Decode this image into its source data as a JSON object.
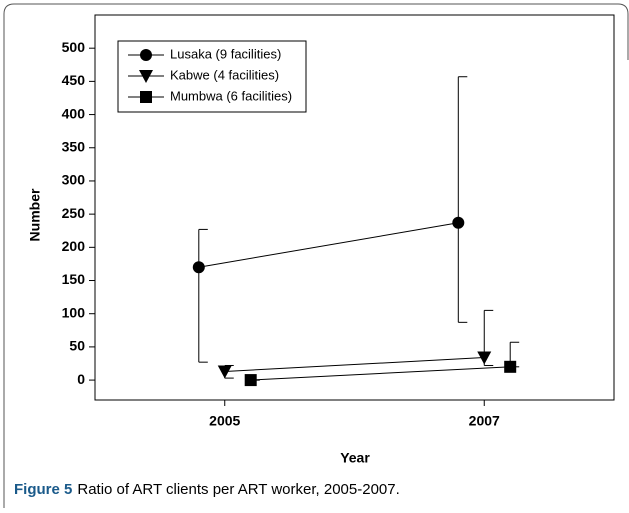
{
  "chart_data": {
    "type": "errorbar",
    "xlabel": "Year",
    "ylabel": "Number",
    "xlim": [
      2004,
      2008
    ],
    "xticks": [
      2005,
      2007
    ],
    "ylim": [
      -30,
      550
    ],
    "yticks": [
      0,
      50,
      100,
      150,
      200,
      250,
      300,
      350,
      400,
      450,
      500
    ],
    "legend": "upper left",
    "series": [
      {
        "name": "Lusaka (9 facilities)",
        "color": "#000000",
        "marker": "circle",
        "x": [
          2004.8,
          2006.8
        ],
        "values": [
          170,
          237
        ],
        "upper": [
          227,
          457
        ],
        "lower": [
          27,
          87
        ]
      },
      {
        "name": "Kabwe (4 facilities)",
        "color": "#000000",
        "marker": "triangle-down",
        "x": [
          2005,
          2007
        ],
        "values": [
          13,
          34
        ],
        "upper": [
          22,
          105
        ],
        "lower": [
          3,
          22
        ]
      },
      {
        "name": "Mumbwa (6 facilities)",
        "color": "#000000",
        "marker": "square",
        "x": [
          2005.2,
          2007.2
        ],
        "values": [
          0,
          20
        ],
        "upper": [
          0,
          57
        ],
        "lower": [
          0,
          20
        ]
      }
    ]
  },
  "caption": {
    "label": "Figure 5",
    "text": "Ratio of ART clients per ART worker, 2005-2007."
  }
}
